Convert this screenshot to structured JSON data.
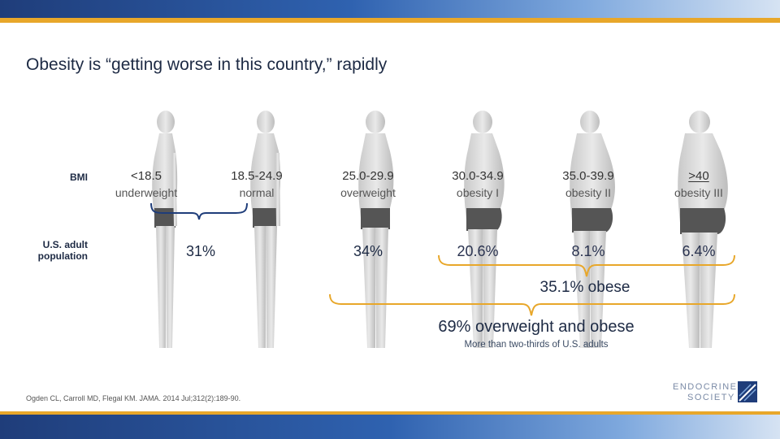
{
  "title": "Obesity is “getting worse in this country,” rapidly",
  "row_labels": {
    "bmi": "BMI",
    "population": "U.S. adult population"
  },
  "categories": [
    {
      "range": "<18.5",
      "name": "underweight"
    },
    {
      "range": "18.5-24.9",
      "name": "normal"
    },
    {
      "range": "25.0-29.9",
      "name": "overweight"
    },
    {
      "range": "30.0-34.9",
      "name": "obesity I"
    },
    {
      "range": "35.0-39.9",
      "name": "obesity II"
    },
    {
      "range": ">40",
      "name": "obesity III"
    }
  ],
  "percentages": {
    "underweight_normal": "31%",
    "overweight": "34%",
    "obesity1": "20.6%",
    "obesity2": "8.1%",
    "obesity3": "6.4%"
  },
  "obese_total": "35.1% obese",
  "overweight_obese_total": "69% overweight and obese",
  "overweight_obese_sub": "More than two-thirds of U.S. adults",
  "citation": "Ogden CL, Carroll MD, Flegal KM. JAMA. 2014 Jul;312(2):189-90.",
  "logo": {
    "line1": "ENDOCRINE",
    "line2": "SOCIETY"
  },
  "colors": {
    "accent_gold": "#e8a72a",
    "brand_blue": "#1f3d7a",
    "text_dark": "#1d2a44"
  }
}
